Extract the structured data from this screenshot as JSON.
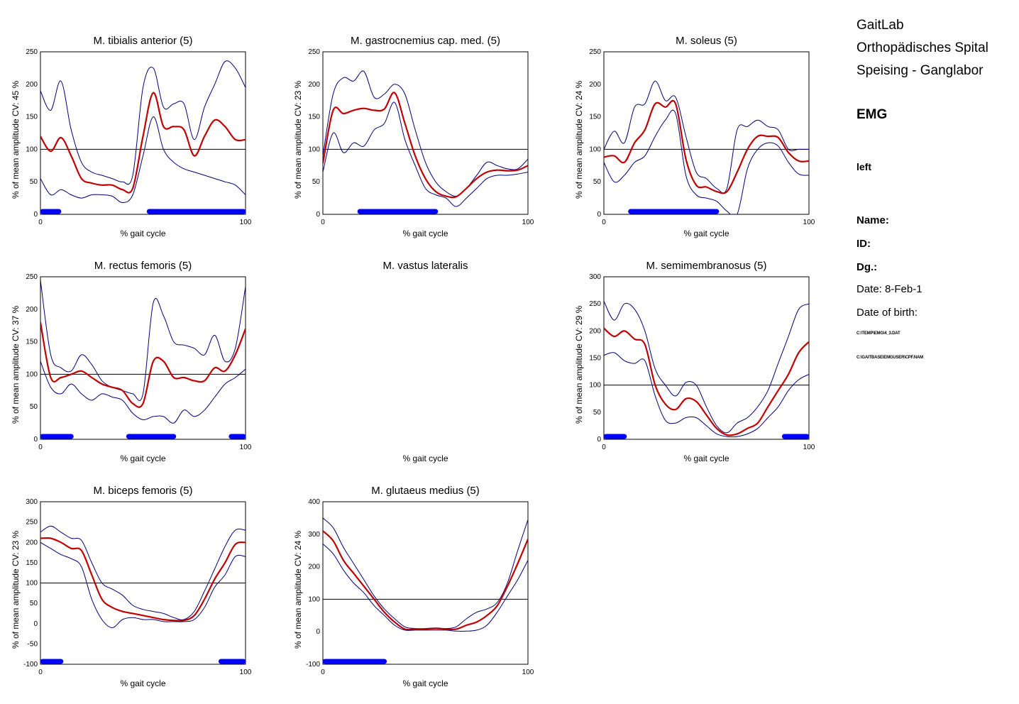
{
  "info": {
    "lines": [
      "GaitLab",
      "Orthopädisches Spital",
      "Speising - Ganglabor"
    ],
    "section": "EMG",
    "side": "left",
    "name_label": "Name:",
    "id_label": "ID:",
    "dg_label": "Dg.:",
    "date": "Date: 8-Feb-1",
    "dob": "Date of birth:",
    "file1": "C:\\TEMP\\EMG\\4_3.DAT",
    "file2": "C:\\GAITBASE\\EMGUSER\\CPF.NAM"
  },
  "colors": {
    "mean": "#c00000",
    "band": "#00007a",
    "activity": "#0000ff",
    "axis": "#000000"
  },
  "chart_data": [
    {
      "type": "line",
      "title": "M. tibialis anterior (5)",
      "xlabel": "% gait cycle",
      "ylabel": "% of mean amplitude  CV: 45 %",
      "xlim": [
        0,
        100
      ],
      "ylim": [
        0,
        250
      ],
      "yticks": [
        0,
        50,
        100,
        150,
        200,
        250
      ],
      "xticks": [
        0,
        100
      ],
      "reference": 100,
      "x": [
        0,
        5,
        10,
        15,
        20,
        25,
        30,
        35,
        40,
        45,
        50,
        55,
        60,
        65,
        70,
        75,
        80,
        85,
        90,
        95,
        100
      ],
      "series": [
        {
          "role": "upper",
          "values": [
            190,
            160,
            205,
            130,
            80,
            65,
            60,
            55,
            50,
            60,
            195,
            225,
            165,
            170,
            170,
            115,
            165,
            200,
            235,
            225,
            195
          ]
        },
        {
          "role": "mean",
          "values": [
            120,
            97,
            118,
            90,
            55,
            48,
            45,
            45,
            38,
            40,
            120,
            187,
            135,
            135,
            130,
            90,
            120,
            145,
            135,
            115,
            115
          ]
        },
        {
          "role": "lower",
          "values": [
            55,
            30,
            38,
            30,
            25,
            30,
            30,
            28,
            18,
            30,
            90,
            150,
            100,
            80,
            70,
            65,
            60,
            55,
            50,
            45,
            30
          ]
        }
      ],
      "activity": [
        [
          0,
          10
        ],
        [
          52,
          100
        ]
      ]
    },
    {
      "type": "line",
      "title": "M. gastrocnemius cap. med. (5)",
      "xlabel": "% gait cycle",
      "ylabel": "% of mean amplitude  CV: 23 %",
      "xlim": [
        0,
        100
      ],
      "ylim": [
        0,
        250
      ],
      "yticks": [
        0,
        50,
        100,
        150,
        200,
        250
      ],
      "xticks": [
        0,
        100
      ],
      "reference": 100,
      "x": [
        0,
        5,
        10,
        15,
        20,
        25,
        30,
        35,
        40,
        45,
        50,
        55,
        60,
        65,
        70,
        75,
        80,
        85,
        90,
        95,
        100
      ],
      "series": [
        {
          "role": "upper",
          "values": [
            90,
            185,
            210,
            205,
            220,
            180,
            185,
            200,
            185,
            130,
            80,
            50,
            35,
            28,
            40,
            60,
            80,
            75,
            70,
            70,
            85
          ]
        },
        {
          "role": "mean",
          "values": [
            78,
            160,
            155,
            160,
            163,
            160,
            162,
            187,
            140,
            90,
            55,
            35,
            28,
            27,
            40,
            55,
            65,
            68,
            67,
            68,
            75
          ]
        },
        {
          "role": "lower",
          "values": [
            65,
            125,
            95,
            110,
            105,
            130,
            140,
            172,
            115,
            75,
            40,
            30,
            25,
            12,
            25,
            40,
            55,
            60,
            60,
            62,
            65
          ]
        }
      ],
      "activity": [
        [
          17,
          56
        ]
      ]
    },
    {
      "type": "line",
      "title": "M. soleus (5)",
      "xlabel": "% gait cycle",
      "ylabel": "% of mean amplitude  CV: 24 %",
      "xlim": [
        0,
        100
      ],
      "ylim": [
        0,
        250
      ],
      "yticks": [
        0,
        50,
        100,
        150,
        200,
        250
      ],
      "xticks": [
        0,
        100
      ],
      "reference": 100,
      "x": [
        0,
        5,
        10,
        15,
        20,
        25,
        30,
        35,
        40,
        45,
        50,
        55,
        60,
        65,
        70,
        75,
        80,
        85,
        90,
        95,
        100
      ],
      "series": [
        {
          "role": "upper",
          "values": [
            100,
            128,
            110,
            165,
            170,
            205,
            175,
            180,
            120,
            65,
            55,
            40,
            40,
            130,
            135,
            145,
            135,
            130,
            100,
            100,
            100
          ]
        },
        {
          "role": "mean",
          "values": [
            88,
            90,
            80,
            110,
            130,
            170,
            165,
            170,
            85,
            45,
            42,
            35,
            35,
            65,
            100,
            120,
            120,
            118,
            95,
            82,
            82
          ]
        },
        {
          "role": "lower",
          "values": [
            80,
            50,
            60,
            80,
            90,
            120,
            145,
            155,
            60,
            30,
            25,
            20,
            5,
            0,
            70,
            100,
            110,
            105,
            80,
            62,
            60
          ]
        }
      ],
      "activity": [
        [
          12,
          56
        ]
      ]
    },
    {
      "type": "line",
      "title": "M. rectus femoris (5)",
      "xlabel": "% gait cycle",
      "ylabel": "% of mean amplitude  CV: 37 %",
      "xlim": [
        0,
        100
      ],
      "ylim": [
        0,
        250
      ],
      "yticks": [
        0,
        50,
        100,
        150,
        200,
        250
      ],
      "xticks": [
        0,
        100
      ],
      "reference": 100,
      "x": [
        0,
        5,
        10,
        15,
        20,
        25,
        30,
        35,
        40,
        45,
        50,
        55,
        60,
        65,
        70,
        75,
        80,
        85,
        90,
        95,
        100
      ],
      "series": [
        {
          "role": "upper",
          "values": [
            245,
            130,
            110,
            105,
            130,
            115,
            90,
            80,
            75,
            70,
            70,
            210,
            190,
            150,
            145,
            140,
            130,
            160,
            120,
            140,
            235
          ]
        },
        {
          "role": "mean",
          "values": [
            180,
            95,
            95,
            100,
            105,
            95,
            85,
            80,
            75,
            55,
            55,
            120,
            120,
            95,
            95,
            90,
            90,
            110,
            105,
            130,
            170
          ]
        },
        {
          "role": "lower",
          "values": [
            120,
            80,
            70,
            85,
            70,
            60,
            70,
            65,
            60,
            40,
            30,
            35,
            35,
            25,
            45,
            35,
            45,
            65,
            85,
            95,
            108
          ]
        }
      ],
      "activity": [
        [
          0,
          16
        ],
        [
          42,
          66
        ],
        [
          92,
          100
        ]
      ]
    },
    {
      "type": "line",
      "title": "M. vastus lateralis",
      "xlabel": "% gait cycle",
      "ylabel": "",
      "xlim": [
        0,
        100
      ],
      "ylim": [
        0,
        250
      ],
      "yticks": [],
      "xticks": [],
      "reference": null,
      "x": [],
      "series": [],
      "activity": [],
      "empty": true
    },
    {
      "type": "line",
      "title": "M. semimembranosus (5)",
      "xlabel": "% gait cycle",
      "ylabel": "% of mean amplitude  CV: 29 %",
      "xlim": [
        0,
        100
      ],
      "ylim": [
        0,
        300
      ],
      "yticks": [
        0,
        50,
        100,
        150,
        200,
        250,
        300
      ],
      "xticks": [
        0,
        100
      ],
      "reference": 100,
      "x": [
        0,
        5,
        10,
        15,
        20,
        25,
        30,
        35,
        40,
        45,
        50,
        55,
        60,
        65,
        70,
        75,
        80,
        85,
        90,
        95,
        100
      ],
      "series": [
        {
          "role": "upper",
          "values": [
            255,
            220,
            250,
            240,
            200,
            130,
            100,
            80,
            105,
            100,
            60,
            25,
            12,
            30,
            40,
            60,
            90,
            140,
            190,
            240,
            250
          ]
        },
        {
          "role": "mean",
          "values": [
            205,
            190,
            200,
            185,
            175,
            100,
            65,
            55,
            75,
            70,
            45,
            20,
            8,
            10,
            20,
            30,
            60,
            90,
            120,
            160,
            180
          ]
        },
        {
          "role": "lower",
          "values": [
            155,
            160,
            145,
            140,
            145,
            80,
            35,
            30,
            40,
            40,
            25,
            10,
            5,
            5,
            10,
            20,
            40,
            60,
            90,
            110,
            120
          ]
        }
      ],
      "activity": [
        [
          0,
          11
        ],
        [
          87,
          100
        ]
      ]
    },
    {
      "type": "line",
      "title": "M. biceps femoris (5)",
      "xlabel": "% gait cycle",
      "ylabel": "% of mean amplitude  CV: 23 %",
      "xlim": [
        0,
        100
      ],
      "ylim": [
        -100,
        300
      ],
      "yticks": [
        -100,
        -50,
        0,
        50,
        100,
        150,
        200,
        250,
        300
      ],
      "xticks": [
        0,
        100
      ],
      "reference": 100,
      "x": [
        0,
        5,
        10,
        15,
        20,
        25,
        30,
        35,
        40,
        45,
        50,
        55,
        60,
        65,
        70,
        75,
        80,
        85,
        90,
        95,
        100
      ],
      "series": [
        {
          "role": "upper",
          "values": [
            225,
            240,
            225,
            210,
            205,
            150,
            100,
            85,
            70,
            45,
            35,
            30,
            25,
            15,
            10,
            30,
            80,
            135,
            190,
            230,
            230
          ]
        },
        {
          "role": "mean",
          "values": [
            210,
            210,
            200,
            185,
            180,
            120,
            60,
            40,
            30,
            25,
            20,
            15,
            10,
            8,
            8,
            20,
            60,
            110,
            150,
            195,
            200
          ]
        },
        {
          "role": "lower",
          "values": [
            200,
            185,
            170,
            160,
            140,
            60,
            10,
            -10,
            10,
            15,
            10,
            10,
            5,
            5,
            5,
            10,
            40,
            90,
            120,
            165,
            165
          ]
        }
      ],
      "activity": [
        [
          0,
          11
        ],
        [
          87,
          100
        ]
      ]
    },
    {
      "type": "line",
      "title": "M. glutaeus medius (5)",
      "xlabel": "% gait cycle",
      "ylabel": "% of mean amplitude  CV: 24 %",
      "xlim": [
        0,
        100
      ],
      "ylim": [
        -100,
        400
      ],
      "yticks": [
        -100,
        0,
        100,
        200,
        300,
        400
      ],
      "xticks": [
        0,
        100
      ],
      "reference": 100,
      "x": [
        0,
        5,
        10,
        15,
        20,
        25,
        30,
        35,
        40,
        45,
        50,
        55,
        60,
        65,
        70,
        75,
        80,
        85,
        90,
        95,
        100
      ],
      "series": [
        {
          "role": "upper",
          "values": [
            350,
            320,
            260,
            210,
            160,
            110,
            70,
            40,
            15,
            10,
            10,
            12,
            10,
            15,
            40,
            60,
            70,
            90,
            150,
            250,
            345
          ]
        },
        {
          "role": "mean",
          "values": [
            310,
            280,
            220,
            180,
            140,
            100,
            60,
            30,
            8,
            8,
            8,
            10,
            8,
            8,
            20,
            30,
            50,
            80,
            140,
            210,
            285
          ]
        },
        {
          "role": "lower",
          "values": [
            270,
            240,
            190,
            150,
            120,
            80,
            50,
            20,
            5,
            5,
            5,
            5,
            5,
            2,
            2,
            5,
            20,
            60,
            110,
            160,
            220
          ]
        }
      ],
      "activity": [
        [
          0,
          31
        ]
      ]
    }
  ]
}
